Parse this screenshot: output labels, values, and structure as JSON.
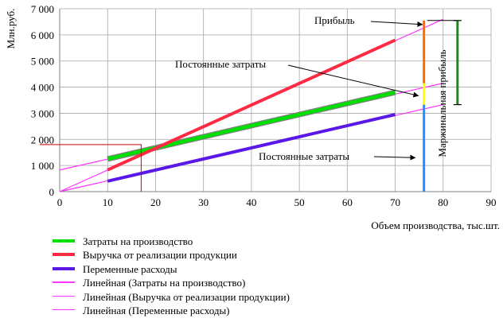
{
  "chart_data": {
    "type": "line",
    "xlabel": "Объем производства, тыс.шт.",
    "ylabel": "Млн.руб.",
    "xlim": [
      0,
      90
    ],
    "ylim": [
      0,
      7000
    ],
    "x_ticks": [
      "0",
      "10",
      "20",
      "30",
      "40",
      "50",
      "60",
      "70",
      "80",
      "90"
    ],
    "y_ticks": [
      "0",
      "1000",
      "2000",
      "3000",
      "4000",
      "5000",
      "6000",
      "7000"
    ],
    "y_tick_labels": [
      "0",
      "1 000",
      "2 000",
      "3 000",
      "4 000",
      "5 000",
      "6 000",
      "7 000"
    ],
    "grid": true,
    "legend_position": "bottom",
    "series": [
      {
        "name": "Затраты на производство",
        "color": "#00e000",
        "width": 4.5,
        "x": [
          10,
          70
        ],
        "y": [
          1250,
          3800
        ]
      },
      {
        "name": "Выручка от реализации продукции",
        "color": "#ff2b45",
        "width": 4,
        "x": [
          10,
          70
        ],
        "y": [
          830,
          5800
        ]
      },
      {
        "name": "Переменные расходы",
        "color": "#5a18e8",
        "width": 4,
        "x": [
          10,
          70
        ],
        "y": [
          400,
          2950
        ]
      },
      {
        "name": "Линейная (Затраты на производство)",
        "color": "#ff33ff",
        "width": 1.2,
        "trend": true,
        "x": [
          0,
          80
        ],
        "y": [
          830,
          4150
        ]
      },
      {
        "name": "Линейная (Выручка от реализации продукции)",
        "color": "#ff33ff",
        "width": 1.2,
        "trend": true,
        "x": [
          0,
          80
        ],
        "y": [
          0,
          6600
        ]
      },
      {
        "name": "Линейная (Переменные расходы)",
        "color": "#ff33ff",
        "width": 1.2,
        "trend": true,
        "x": [
          0,
          80
        ],
        "y": [
          0,
          3330
        ]
      }
    ],
    "breakeven_guide": {
      "x": 17,
      "y": 1800,
      "color": "#cc0000"
    },
    "vertical_segments": [
      {
        "x": 76,
        "y0": 0,
        "y1": 3330,
        "color": "#1e90ff"
      },
      {
        "x": 76,
        "y0": 3330,
        "y1": 4150,
        "color": "#ffff00"
      },
      {
        "x": 76,
        "y0": 4150,
        "y1": 6550,
        "color": "#ff6a00"
      }
    ],
    "margin_bracket": {
      "x": 83,
      "y0": 3330,
      "y1": 6550,
      "color": "#1a8a1a"
    },
    "annotations": [
      {
        "text": "Прибыль",
        "tx": 76,
        "ty": 6550,
        "arrow": true
      },
      {
        "text": "Постоянные затраты",
        "tx": 75.5,
        "ty": 3730,
        "arrow": true
      },
      {
        "text": "Постоянные затраты",
        "tx": 74.5,
        "ty": 1330,
        "arrow": true
      },
      {
        "text": "Маржинальная прибыль",
        "rotated": true
      }
    ]
  }
}
